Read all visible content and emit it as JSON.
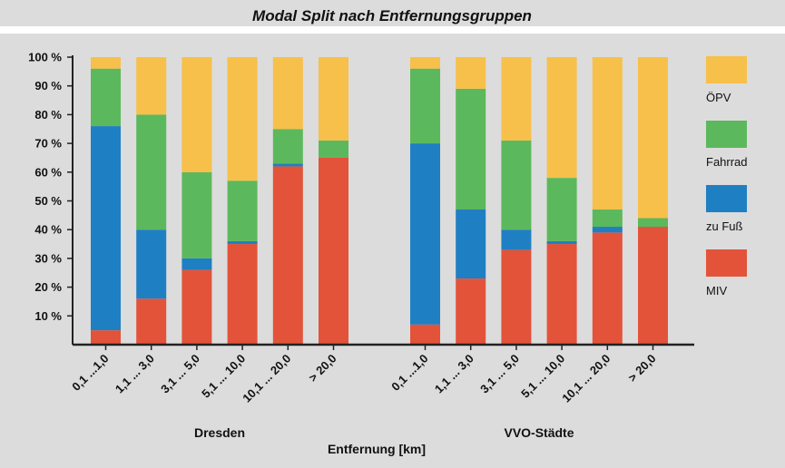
{
  "chart_data": {
    "type": "bar",
    "stacked": true,
    "title": "Modal Split nach Entfernungsgruppen",
    "xlabel": "Entfernung [km]",
    "ylabel": "",
    "ylim": [
      0,
      100
    ],
    "yticks": [
      "10 %",
      "20 %",
      "30 %",
      "40 %",
      "50 %",
      "60 %",
      "70 %",
      "80 %",
      "90 %",
      "100 %"
    ],
    "legend_position": "right",
    "stack_order": [
      "MIV",
      "zu Fuß",
      "Fahrrad",
      "ÖPV"
    ],
    "colors": {
      "ÖPV": "#f7c04a",
      "Fahrrad": "#5cb85c",
      "zu Fuß": "#1f7fc3",
      "MIV": "#e2533a"
    },
    "legend": [
      "ÖPV",
      "Fahrrad",
      "zu Fuß",
      "MIV"
    ],
    "groups": [
      {
        "name": "Dresden",
        "categories": [
          "0,1 ...1,0",
          "1,1 ... 3,0",
          "3,1 ... 5,0",
          "5,1 ... 10,0",
          "10,1 ... 20,0",
          "> 20,0"
        ],
        "series": [
          {
            "name": "MIV",
            "values": [
              5,
              16,
              26,
              35,
              62,
              65
            ]
          },
          {
            "name": "zu Fuß",
            "values": [
              71,
              24,
              4,
              1,
              1,
              0
            ]
          },
          {
            "name": "Fahrrad",
            "values": [
              20,
              40,
              30,
              21,
              12,
              6
            ]
          },
          {
            "name": "ÖPV",
            "values": [
              4,
              20,
              40,
              43,
              25,
              29
            ]
          }
        ]
      },
      {
        "name": "VVO-Städte",
        "categories": [
          "0,1 ...1,0",
          "1,1 ... 3,0",
          "3,1 ... 5,0",
          "5,1 ... 10,0",
          "10,1 ... 20,0",
          "> 20,0"
        ],
        "series": [
          {
            "name": "MIV",
            "values": [
              7,
              23,
              33,
              35,
              39,
              41
            ]
          },
          {
            "name": "zu Fuß",
            "values": [
              63,
              24,
              7,
              1,
              2,
              0
            ]
          },
          {
            "name": "Fahrrad",
            "values": [
              26,
              42,
              31,
              22,
              6,
              3
            ]
          },
          {
            "name": "ÖPV",
            "values": [
              4,
              11,
              29,
              42,
              53,
              56
            ]
          }
        ]
      }
    ]
  }
}
